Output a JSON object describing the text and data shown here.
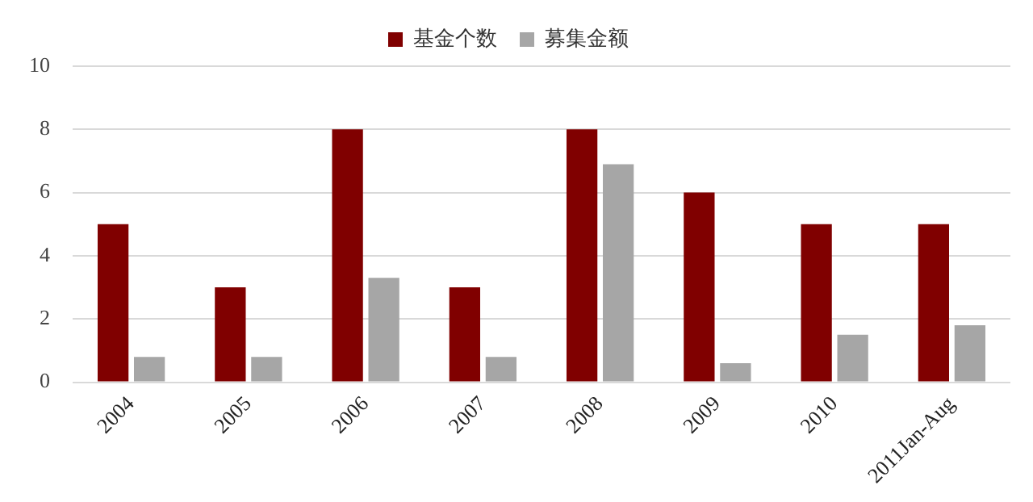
{
  "chart_data": {
    "type": "bar",
    "categories": [
      "2004",
      "2005",
      "2006",
      "2007",
      "2008",
      "2009",
      "2010",
      "2011Jan-Aug"
    ],
    "series": [
      {
        "name": "基金个数",
        "color": "#800000",
        "values": [
          5,
          3,
          8,
          3,
          8,
          6,
          5,
          5
        ]
      },
      {
        "name": "募集金额",
        "color": "#a6a6a6",
        "values": [
          0.8,
          0.8,
          3.3,
          0.8,
          6.9,
          0.6,
          1.5,
          1.8
        ]
      }
    ],
    "ylim": [
      0,
      10
    ],
    "yticks": [
      0,
      2,
      4,
      6,
      8,
      10
    ],
    "grid": "y",
    "legend": "top"
  }
}
